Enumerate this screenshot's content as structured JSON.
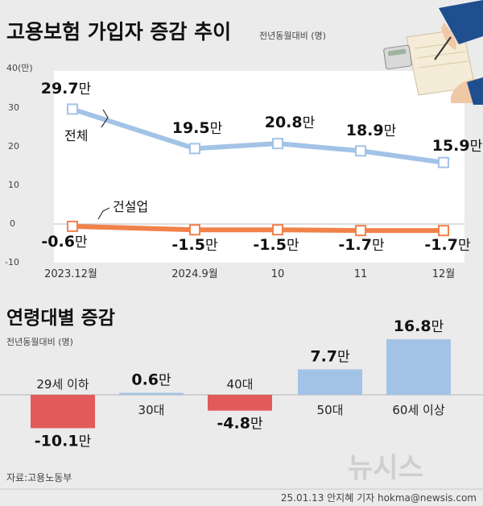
{
  "title": "고용보험 가입자 증감 추이",
  "subtitle": "전년동월대비 (명)",
  "line_chart": {
    "y_top_tick": "40(만)",
    "y_ticks": [
      "30",
      "20",
      "10",
      "0",
      "-10"
    ]
  },
  "bar_section": {
    "title": "연령대별 증감",
    "subtitle": "전년동월대비 (명)"
  },
  "source": "자료:고용노동부",
  "footer": "25.01.13 안지혜 기자 hokma@newsis.com",
  "watermark": "뉴시스",
  "colors": {
    "total": "#a3c3e6",
    "construction": "#f0824a",
    "bar_positive": "#a3c3e6",
    "bar_negative": "#e35a5a",
    "background": "#ebebeb",
    "plot_background": "#ffffff"
  },
  "chart_data": [
    {
      "type": "line",
      "title": "고용보험 가입자 증감 추이",
      "subtitle": "전년동월대비 (명)",
      "categories": [
        "2023.12월",
        "2024.9월",
        "10",
        "11",
        "12월"
      ],
      "ylim": [
        -10,
        40
      ],
      "yticks": [
        -10,
        0,
        10,
        20,
        30,
        40
      ],
      "grid": false,
      "series": [
        {
          "name": "전체",
          "values": [
            29.7,
            19.5,
            20.8,
            18.9,
            15.9
          ],
          "labels": [
            "29.7만",
            "19.5만",
            "20.8만",
            "18.9만",
            "15.9만"
          ]
        },
        {
          "name": "건설업",
          "values": [
            -0.6,
            -1.5,
            -1.5,
            -1.7,
            -1.7
          ],
          "labels": [
            "-0.6만",
            "-1.5만",
            "-1.5만",
            "-1.7만",
            "-1.7만"
          ]
        }
      ]
    },
    {
      "type": "bar",
      "title": "연령대별 증감",
      "subtitle": "전년동월대비 (명)",
      "categories": [
        "29세 이하",
        "30대",
        "40대",
        "50대",
        "60세 이상"
      ],
      "values": [
        -10.1,
        0.6,
        -4.8,
        7.7,
        16.8
      ],
      "labels": [
        "-10.1만",
        "0.6만",
        "-4.8만",
        "7.7만",
        "16.8만"
      ]
    }
  ]
}
